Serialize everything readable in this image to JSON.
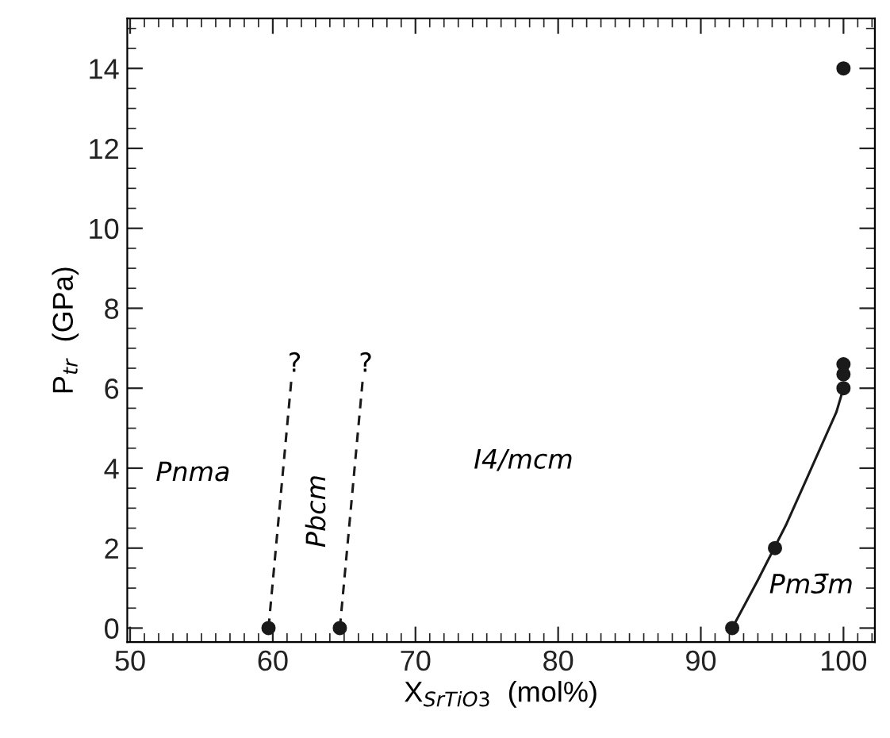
{
  "chart_data": {
    "type": "scatter",
    "xlabel": "X$_{SrTiO3}$  (mol%)",
    "ylabel": "P$_{tr}$  (GPa)",
    "xlim": [
      49.8,
      102.2
    ],
    "ylim": [
      -0.35,
      15.25
    ],
    "xticks": [
      50,
      60,
      70,
      80,
      90,
      100
    ],
    "yticks": [
      0,
      2,
      4,
      6,
      8,
      10,
      12,
      14
    ],
    "grid": false,
    "marker": "circle",
    "series": [
      {
        "color": "#1a1a1a",
        "x": [
          59.7,
          64.7,
          92.2,
          95.2,
          100,
          100,
          100,
          100
        ],
        "values": [
          0,
          0,
          0,
          2,
          6.0,
          6.35,
          6.6,
          14
        ]
      },
      {
        "type": "line",
        "color": "#1a1a1a",
        "line_style": "dashed",
        "marker": "none",
        "x": [
          59.7,
          61.3
        ],
        "values": [
          0,
          6.2
        ]
      },
      {
        "type": "line",
        "color": "#1a1a1a",
        "line_style": "dashed",
        "marker": "none",
        "x": [
          64.7,
          66.3
        ],
        "values": [
          0,
          6.2
        ]
      },
      {
        "type": "line",
        "color": "#1a1a1a",
        "line_style": "solid",
        "marker": "none",
        "x": [
          92.2,
          94,
          96,
          98,
          99.5,
          100
        ],
        "values": [
          0,
          1.2,
          2.6,
          4.2,
          5.4,
          6.0
        ]
      }
    ],
    "annotations": [
      "?",
      "?",
      "Pnma",
      "Pbcm",
      "I4/mcm",
      "Pm3̄m"
    ]
  }
}
